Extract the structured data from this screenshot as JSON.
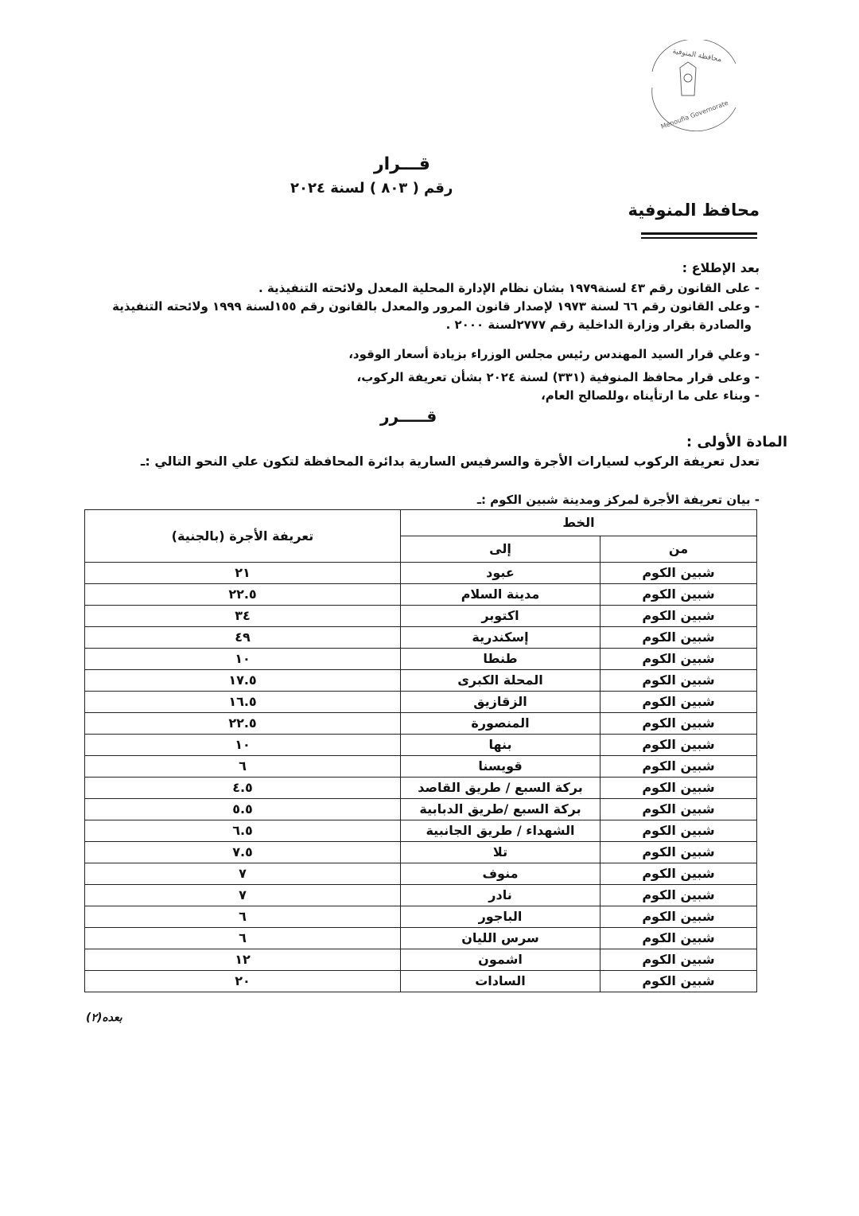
{
  "seal": {
    "arabic_text": "محافظة المنوفية",
    "english_text": "Menoufia Governorate"
  },
  "header": {
    "title": "قـــرار",
    "decision_number": "رقم ( ٨٠٣ ) لسنة ٢٠٢٤",
    "issuer": "محافظ المنوفية"
  },
  "preamble": {
    "heading": "بعد الإطلاع :",
    "items": [
      "- على القانون رقم ٤٣ لسنة١٩٧٩ بشان نظام الإدارة المحلية المعدل ولائحته التنفيذية .",
      "- وعلى القانون رقم ٦٦ لسنة ١٩٧٣ لإصدار قانون المرور والمعدل بالقانون رقم ١٥٥لسنة ١٩٩٩ ولائحته التنفيذية",
      "والصادرة بقرار وزارة الداخلية رقم ٢٧٧٧لسنة ٢٠٠٠ .",
      "- وعلي قرار السيد المهندس رئيس مجلس الوزراء بزيادة أسعار الوقود،",
      "- وعلى قرار محافظ المنوفية (٣٣١) لسنة ٢٠٢٤ بشأن تعريفة الركوب،",
      "- وبناء على ما ارتأيناه ،وللصالح العام،"
    ]
  },
  "decision_heading": "قـــــرر",
  "article": {
    "heading": "المادة الأولى :",
    "body": "تعدل تعريفة الركوب لسيارات الأجرة والسرفيس السارية بدائرة المحافظة لتكون علي النحو التالي :ـ",
    "table_intro": "- بيان تعريفة الأجرة لمركز ومدينة شبين الكوم :ـ"
  },
  "table": {
    "headers": {
      "line": "الخط",
      "from": "من",
      "to": "إلى",
      "fare": "تعريفة الأجرة (بالجنية)"
    },
    "rows": [
      {
        "from": "شبين الكوم",
        "to": "عبود",
        "fare": "٢١"
      },
      {
        "from": "شبين الكوم",
        "to": "مدينة السلام",
        "fare": "٢٢.٥"
      },
      {
        "from": "شبين الكوم",
        "to": "اكتوبر",
        "fare": "٣٤"
      },
      {
        "from": "شبين الكوم",
        "to": "إسكندرية",
        "fare": "٤٩"
      },
      {
        "from": "شبين الكوم",
        "to": "طنطا",
        "fare": "١٠"
      },
      {
        "from": "شبين الكوم",
        "to": "المحلة الكبرى",
        "fare": "١٧.٥"
      },
      {
        "from": "شبين الكوم",
        "to": "الزقازيق",
        "fare": "١٦.٥"
      },
      {
        "from": "شبين الكوم",
        "to": "المنصورة",
        "fare": "٢٢.٥"
      },
      {
        "from": "شبين الكوم",
        "to": "بنها",
        "fare": "١٠"
      },
      {
        "from": "شبين الكوم",
        "to": "قويسنا",
        "fare": "٦"
      },
      {
        "from": "شبين الكوم",
        "to": "بركة السبع / طريق القاصد",
        "fare": "٤.٥"
      },
      {
        "from": "شبين الكوم",
        "to": "بركة السبع /طريق الدبابية",
        "fare": "٥.٥"
      },
      {
        "from": "شبين الكوم",
        "to": "الشهداء / طريق الجانبية",
        "fare": "٦.٥"
      },
      {
        "from": "شبين الكوم",
        "to": "تلا",
        "fare": "٧.٥"
      },
      {
        "from": "شبين الكوم",
        "to": "منوف",
        "fare": "٧"
      },
      {
        "from": "شبين الكوم",
        "to": "نادر",
        "fare": "٧"
      },
      {
        "from": "شبين الكوم",
        "to": "الباجور",
        "fare": "٦"
      },
      {
        "from": "شبين الكوم",
        "to": "سرس الليان",
        "fare": "٦"
      },
      {
        "from": "شبين الكوم",
        "to": "اشمون",
        "fare": "١٢"
      },
      {
        "from": "شبين الكوم",
        "to": "السادات",
        "fare": "٢٠"
      }
    ]
  },
  "footer": {
    "continued": "بعده(٢)"
  }
}
